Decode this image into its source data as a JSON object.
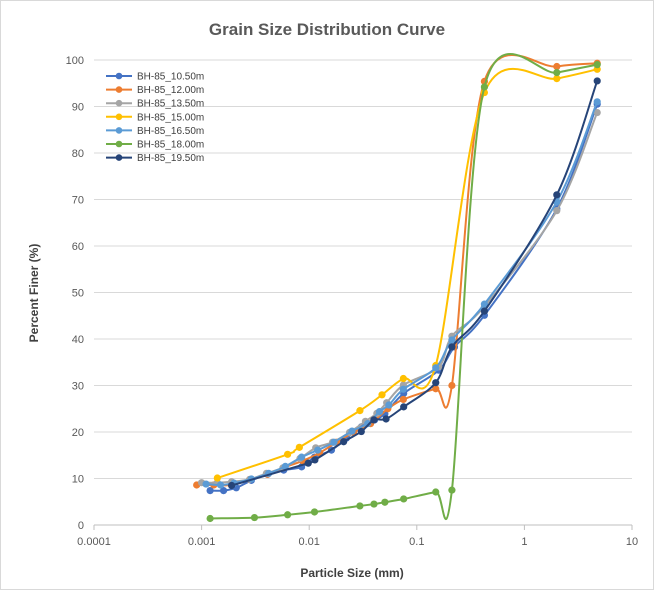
{
  "chart_data": {
    "type": "line",
    "title": "Grain Size Distribution Curve",
    "xlabel": "Particle Size (mm)",
    "ylabel": "Percent Finer (%)",
    "x_scale": "log",
    "xlim": [
      0.0001,
      10
    ],
    "ylim": [
      0,
      100
    ],
    "x_ticks": [
      "0.0001",
      "0.001",
      "0.01",
      "0.1",
      "1",
      "10"
    ],
    "y_ticks": [
      "0",
      "10",
      "20",
      "30",
      "40",
      "50",
      "60",
      "70",
      "80",
      "90",
      "100"
    ],
    "grid": "horizontal",
    "legend_position": "top-left",
    "series": [
      {
        "name": "BH-85_10.50m",
        "color": "#4472c4",
        "x": [
          0.0012,
          0.0016,
          0.0021,
          0.0029,
          0.0041,
          0.0058,
          0.0085,
          0.0112,
          0.0161,
          0.0222,
          0.0305,
          0.0405,
          0.0505,
          0.0755,
          0.16,
          0.224,
          0.425,
          2.0,
          4.75
        ],
        "y": [
          7.4,
          7.4,
          8.0,
          9.6,
          10.9,
          11.8,
          12.5,
          14.6,
          16.1,
          18.7,
          21.1,
          22.6,
          23.9,
          28.3,
          33.3,
          38.3,
          45.1,
          68.0,
          90.5
        ]
      },
      {
        "name": "BH-85_12.00m",
        "color": "#ed7d31",
        "x": [
          0.0009,
          0.0013,
          0.0019,
          0.0028,
          0.0041,
          0.0059,
          0.0087,
          0.0125,
          0.0179,
          0.0258,
          0.0372,
          0.0538,
          0.075,
          0.15,
          0.212,
          0.425,
          2.0,
          4.75
        ],
        "y": [
          8.6,
          8.6,
          8.6,
          9.8,
          10.9,
          12.4,
          13.8,
          15.5,
          17.8,
          19.9,
          21.8,
          25.0,
          27.0,
          29.3,
          30.0,
          95.4,
          98.6,
          99.3
        ]
      },
      {
        "name": "BH-85_13.50m",
        "color": "#a5a5a5",
        "x": [
          0.001,
          0.0014,
          0.0019,
          0.0028,
          0.004,
          0.0057,
          0.0082,
          0.0115,
          0.0165,
          0.0237,
          0.0333,
          0.0425,
          0.0525,
          0.075,
          0.16,
          0.212,
          0.425,
          2.0,
          4.75
        ],
        "y": [
          9.1,
          9.1,
          9.3,
          9.8,
          11.1,
          12.3,
          14.3,
          16.6,
          17.8,
          19.9,
          22.3,
          24.0,
          26.3,
          30.1,
          34.0,
          40.6,
          47.0,
          67.6,
          88.7
        ]
      },
      {
        "name": "BH-85_15.00m",
        "color": "#ffc000",
        "x": [
          0.0014,
          0.0063,
          0.0081,
          0.0296,
          0.0475,
          0.075,
          0.15,
          0.425,
          2.0,
          4.75
        ],
        "y": [
          10.1,
          15.2,
          16.7,
          24.6,
          28.0,
          31.5,
          34.3,
          93.0,
          96.0,
          98.0
        ]
      },
      {
        "name": "BH-85_16.50m",
        "color": "#5b9bd5",
        "x": [
          0.0011,
          0.0015,
          0.002,
          0.0029,
          0.0042,
          0.006,
          0.0085,
          0.012,
          0.017,
          0.025,
          0.035,
          0.045,
          0.055,
          0.075,
          0.15,
          0.212,
          0.425,
          2.0,
          4.75
        ],
        "y": [
          8.8,
          8.6,
          9.0,
          9.9,
          11.1,
          12.6,
          14.6,
          16.1,
          17.8,
          20.2,
          21.8,
          24.4,
          25.8,
          29.2,
          33.8,
          39.8,
          47.5,
          69.5,
          91.0
        ]
      },
      {
        "name": "BH-85_18.00m",
        "color": "#70ad47",
        "x": [
          0.0012,
          0.0031,
          0.0063,
          0.0112,
          0.0296,
          0.04,
          0.0505,
          0.0755,
          0.15,
          0.212,
          0.425,
          2.0,
          4.75
        ],
        "y": [
          1.4,
          1.6,
          2.2,
          2.8,
          4.1,
          4.5,
          4.9,
          5.6,
          7.1,
          7.5,
          94.2,
          97.3,
          99.0
        ]
      },
      {
        "name": "BH-85_19.50m",
        "color": "#264478",
        "x": [
          0.0019,
          0.0098,
          0.0113,
          0.0209,
          0.0305,
          0.0399,
          0.0518,
          0.0755,
          0.15,
          0.212,
          0.425,
          2.0,
          4.75
        ],
        "y": [
          8.5,
          13.3,
          14.0,
          17.9,
          20.1,
          22.6,
          22.8,
          25.4,
          30.6,
          38.3,
          46.0,
          71.0,
          95.5
        ]
      }
    ]
  }
}
